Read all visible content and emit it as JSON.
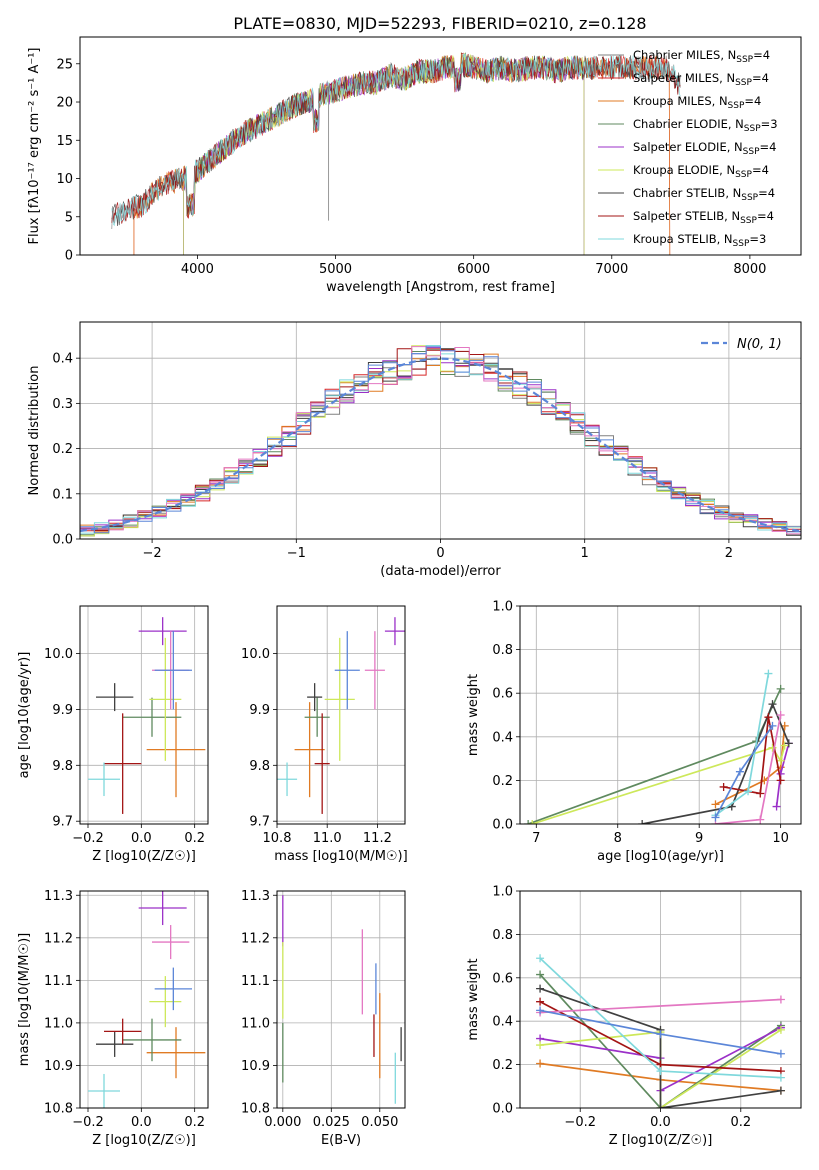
{
  "figure": {
    "title": "PLATE=0830, MJD=52293, FIBERID=0210, z=0.128"
  },
  "chart_data": [
    {
      "id": "spectrum",
      "type": "line",
      "xlabel": "wavelength [Angstrom, rest frame]",
      "ylabel": "Flux [fλ10⁻¹⁷ erg cm⁻² s⁻¹ A⁻¹]",
      "xlim": [
        3150,
        8370
      ],
      "ylim": [
        0,
        28.5
      ],
      "xticks": [
        4000,
        5000,
        6000,
        7000,
        8000
      ],
      "yticks": [
        0,
        5,
        10,
        15,
        20,
        25
      ],
      "grid": false,
      "legend_position": "right",
      "spectrum_outline": {
        "x": [
          3380,
          3500,
          3600,
          3700,
          3800,
          3900,
          4000,
          4100,
          4200,
          4300,
          4400,
          4500,
          4600,
          4700,
          4800,
          4900,
          5000,
          5100,
          5200,
          5300,
          5400,
          5500,
          5600,
          5700,
          5800,
          5900,
          6000,
          6100,
          6200,
          6300,
          6400,
          6500,
          6600,
          6700,
          6800,
          6900,
          7000,
          7100,
          7200,
          7300,
          7400,
          7500
        ],
        "y": [
          5,
          6,
          6.5,
          8.5,
          9.5,
          10,
          11,
          12.5,
          14,
          15.5,
          16.5,
          17.5,
          18.5,
          19.5,
          20,
          21,
          21.5,
          22,
          22.5,
          22.5,
          23.5,
          23,
          24,
          24,
          24.5,
          25,
          24.5,
          24,
          24.5,
          24,
          24.5,
          24.5,
          24,
          24.5,
          24.5,
          24.5,
          24.5,
          24.5,
          24.5,
          24.5,
          24.5,
          22
        ]
      },
      "series": [
        {
          "name": "Chabrier MILES, N_SSP=4",
          "color": "#808080",
          "x_range": [
            3380,
            7500
          ]
        },
        {
          "name": "Salpeter MILES, N_SSP=4",
          "color": "#d62728",
          "x_range": [
            3540,
            7420
          ]
        },
        {
          "name": "Kroupa MILES, N_SSP=4",
          "color": "#e07b24",
          "x_range": [
            3540,
            7420
          ]
        },
        {
          "name": "Chabrier ELODIE, N_SSP=3",
          "color": "#5f8a5f",
          "x_range": [
            3900,
            6800
          ]
        },
        {
          "name": "Salpeter ELODIE, N_SSP=4",
          "color": "#9b30c8",
          "x_range": [
            3900,
            6800
          ]
        },
        {
          "name": "Kroupa ELODIE, N_SSP=4",
          "color": "#cde85a",
          "x_range": [
            3900,
            6800
          ]
        },
        {
          "name": "Chabrier STELIB, N_SSP=4",
          "color": "#404040",
          "x_range": [
            3380,
            7500
          ]
        },
        {
          "name": "Salpeter STELIB, N_SSP=4",
          "color": "#a31515",
          "x_range": [
            3380,
            7500
          ]
        },
        {
          "name": "Kroupa STELIB, N_SSP=3",
          "color": "#7fd8dc",
          "x_range": [
            3380,
            7500
          ]
        }
      ]
    },
    {
      "id": "residuals",
      "type": "histogram",
      "xlabel": "(data-model)/error",
      "ylabel": "Normed distribution",
      "xlim": [
        -2.5,
        2.5
      ],
      "ylim": [
        0,
        0.48
      ],
      "xticks": [
        -2,
        -1,
        0,
        1,
        2
      ],
      "yticks": [
        0.0,
        0.1,
        0.2,
        0.3,
        0.4
      ],
      "grid": true,
      "legend": "N(0, 1)",
      "legend_position": "top-right",
      "bin_width": 0.1
    },
    {
      "id": "age_vs_Z",
      "type": "scatter",
      "xlabel": "Z [log10(Z/Z☉)]",
      "ylabel": "age  [log10(age/yr)]",
      "xlim": [
        -0.23,
        0.25
      ],
      "ylim": [
        9.695,
        10.085
      ],
      "xticks": [
        -0.2,
        0.0,
        0.2
      ],
      "yticks": [
        9.7,
        9.8,
        9.9,
        10.0
      ],
      "grid": true,
      "points": [
        {
          "x": 0.13,
          "y": 9.828,
          "xerr": 0.11,
          "yerr": 0.085,
          "color": "#e07b24"
        },
        {
          "x": 0.04,
          "y": 9.886,
          "xerr": 0.11,
          "yerr": 0.035,
          "color": "#5f8a5f"
        },
        {
          "x": 0.08,
          "y": 10.04,
          "xerr": 0.09,
          "yerr": 0.025,
          "color": "#9b30c8"
        },
        {
          "x": 0.09,
          "y": 9.918,
          "xerr": 0.06,
          "yerr": 0.11,
          "color": "#cde85a"
        },
        {
          "x": -0.1,
          "y": 9.922,
          "xerr": 0.07,
          "yerr": 0.025,
          "color": "#404040"
        },
        {
          "x": -0.07,
          "y": 9.803,
          "xerr": 0.07,
          "yerr": 0.09,
          "color": "#a31515"
        },
        {
          "x": -0.14,
          "y": 9.775,
          "xerr": 0.06,
          "yerr": 0.03,
          "color": "#7fd8dc"
        },
        {
          "x": 0.11,
          "y": 9.97,
          "xerr": 0.07,
          "yerr": 0.07,
          "color": "#e377c2"
        },
        {
          "x": 0.12,
          "y": 9.97,
          "xerr": 0.07,
          "yerr": 0.07,
          "color": "#5b86d8"
        }
      ]
    },
    {
      "id": "age_vs_mass",
      "type": "scatter",
      "xlabel": "mass [log10(M/M☉)]",
      "ylabel": "",
      "xlim": [
        10.8,
        11.31
      ],
      "ylim": [
        9.695,
        10.085
      ],
      "xticks": [
        10.8,
        11.0,
        11.2
      ],
      "yticks": [
        9.7,
        9.8,
        9.9,
        10.0
      ],
      "grid": true,
      "points": [
        {
          "x": 10.93,
          "y": 9.828,
          "xerr": 0.06,
          "yerr": 0.085,
          "color": "#e07b24"
        },
        {
          "x": 10.96,
          "y": 9.886,
          "xerr": 0.05,
          "yerr": 0.035,
          "color": "#5f8a5f"
        },
        {
          "x": 11.27,
          "y": 10.04,
          "xerr": 0.04,
          "yerr": 0.025,
          "color": "#9b30c8"
        },
        {
          "x": 11.05,
          "y": 9.918,
          "xerr": 0.06,
          "yerr": 0.11,
          "color": "#cde85a"
        },
        {
          "x": 10.95,
          "y": 9.922,
          "xerr": 0.03,
          "yerr": 0.025,
          "color": "#404040"
        },
        {
          "x": 10.98,
          "y": 9.803,
          "xerr": 0.03,
          "yerr": 0.09,
          "color": "#a31515"
        },
        {
          "x": 10.84,
          "y": 9.775,
          "xerr": 0.04,
          "yerr": 0.03,
          "color": "#7fd8dc"
        },
        {
          "x": 11.19,
          "y": 9.97,
          "xerr": 0.04,
          "yerr": 0.07,
          "color": "#e377c2"
        },
        {
          "x": 11.08,
          "y": 9.97,
          "xerr": 0.05,
          "yerr": 0.07,
          "color": "#5b86d8"
        }
      ]
    },
    {
      "id": "mass_weight_vs_age",
      "type": "line",
      "xlabel": "age  [log10(age/yr)]",
      "ylabel": "mass weight",
      "xlim": [
        6.8,
        10.25
      ],
      "ylim": [
        0,
        1.0
      ],
      "xticks": [
        7,
        8,
        9,
        10
      ],
      "yticks": [
        0.0,
        0.2,
        0.4,
        0.6,
        0.8,
        1.0
      ],
      "grid": true,
      "series": [
        {
          "color": "#e07b24",
          "points": [
            [
              9.2,
              0.09
            ],
            [
              9.8,
              0.2
            ],
            [
              10.0,
              0.26
            ],
            [
              10.05,
              0.45
            ]
          ]
        },
        {
          "color": "#5f8a5f",
          "points": [
            [
              6.9,
              0.0
            ],
            [
              9.7,
              0.38
            ],
            [
              10.0,
              0.62
            ]
          ]
        },
        {
          "color": "#9b30c8",
          "points": [
            [
              9.95,
              0.08
            ],
            [
              10.0,
              0.23
            ],
            [
              10.1,
              0.37
            ]
          ]
        },
        {
          "color": "#cde85a",
          "points": [
            [
              6.95,
              0.0
            ],
            [
              9.9,
              0.35
            ],
            [
              10.0,
              0.29
            ],
            [
              10.05,
              0.36
            ]
          ]
        },
        {
          "color": "#404040",
          "points": [
            [
              8.3,
              0.0
            ],
            [
              9.4,
              0.08
            ],
            [
              9.9,
              0.55
            ],
            [
              10.1,
              0.37
            ]
          ]
        },
        {
          "color": "#a31515",
          "points": [
            [
              9.3,
              0.17
            ],
            [
              9.75,
              0.14
            ],
            [
              9.85,
              0.49
            ],
            [
              10.0,
              0.2
            ]
          ]
        },
        {
          "color": "#7fd8dc",
          "points": [
            [
              9.2,
              0.04
            ],
            [
              9.6,
              0.15
            ],
            [
              9.85,
              0.69
            ]
          ]
        },
        {
          "color": "#e377c2",
          "points": [
            [
              9.2,
              0.0
            ],
            [
              9.75,
              0.02
            ],
            [
              10.0,
              0.5
            ]
          ]
        },
        {
          "color": "#5b86d8",
          "points": [
            [
              9.2,
              0.03
            ],
            [
              9.5,
              0.24
            ],
            [
              9.9,
              0.45
            ]
          ]
        }
      ]
    },
    {
      "id": "mass_vs_Z",
      "type": "scatter",
      "xlabel": "Z [log10(Z/Z☉)]",
      "ylabel": "mass [log10(M/M☉)]",
      "xlim": [
        -0.23,
        0.25
      ],
      "ylim": [
        10.8,
        11.31
      ],
      "xticks": [
        -0.2,
        0.0,
        0.2
      ],
      "yticks": [
        10.8,
        10.9,
        11.0,
        11.1,
        11.2,
        11.3
      ],
      "grid": true,
      "points": [
        {
          "x": 0.13,
          "y": 10.93,
          "xerr": 0.11,
          "yerr": 0.06,
          "color": "#e07b24"
        },
        {
          "x": 0.04,
          "y": 10.96,
          "xerr": 0.11,
          "yerr": 0.05,
          "color": "#5f8a5f"
        },
        {
          "x": 0.08,
          "y": 11.27,
          "xerr": 0.09,
          "yerr": 0.04,
          "color": "#9b30c8"
        },
        {
          "x": 0.09,
          "y": 11.05,
          "xerr": 0.06,
          "yerr": 0.06,
          "color": "#cde85a"
        },
        {
          "x": -0.1,
          "y": 10.95,
          "xerr": 0.07,
          "yerr": 0.03,
          "color": "#404040"
        },
        {
          "x": -0.07,
          "y": 10.98,
          "xerr": 0.07,
          "yerr": 0.03,
          "color": "#a31515"
        },
        {
          "x": -0.14,
          "y": 10.84,
          "xerr": 0.06,
          "yerr": 0.04,
          "color": "#7fd8dc"
        },
        {
          "x": 0.11,
          "y": 11.19,
          "xerr": 0.07,
          "yerr": 0.04,
          "color": "#e377c2"
        },
        {
          "x": 0.12,
          "y": 11.08,
          "xerr": 0.07,
          "yerr": 0.05,
          "color": "#5b86d8"
        }
      ]
    },
    {
      "id": "mass_vs_EBV",
      "type": "scatter",
      "xlabel": "E(B-V)",
      "ylabel": "",
      "xlim": [
        -0.003,
        0.063
      ],
      "ylim": [
        10.8,
        11.31
      ],
      "xticks": [
        0.0,
        0.025,
        0.05
      ],
      "yticks": [
        10.8,
        10.9,
        11.0,
        11.1,
        11.2,
        11.3
      ],
      "grid": true,
      "points": [
        {
          "x": 0.05,
          "y": 10.97,
          "xerr": 0,
          "yerr": 0.1,
          "color": "#e07b24"
        },
        {
          "x": 0.0,
          "y": 10.93,
          "xerr": 0,
          "yerr": 0.07,
          "color": "#5f8a5f"
        },
        {
          "x": 0.0,
          "y": 11.24,
          "xerr": 0,
          "yerr": 0.06,
          "color": "#9b30c8"
        },
        {
          "x": 0.0,
          "y": 11.1,
          "xerr": 0,
          "yerr": 0.09,
          "color": "#cde85a"
        },
        {
          "x": 0.061,
          "y": 10.95,
          "xerr": 0,
          "yerr": 0.04,
          "color": "#404040"
        },
        {
          "x": 0.047,
          "y": 10.97,
          "xerr": 0,
          "yerr": 0.05,
          "color": "#a31515"
        },
        {
          "x": 0.058,
          "y": 10.87,
          "xerr": 0,
          "yerr": 0.06,
          "color": "#7fd8dc"
        },
        {
          "x": 0.041,
          "y": 11.12,
          "xerr": 0,
          "yerr": 0.1,
          "color": "#e377c2"
        },
        {
          "x": 0.048,
          "y": 11.08,
          "xerr": 0,
          "yerr": 0.06,
          "color": "#5b86d8"
        }
      ]
    },
    {
      "id": "mass_weight_vs_Z",
      "type": "line",
      "xlabel": "Z [log10(Z/Z☉)]",
      "ylabel": "mass weight",
      "xlim": [
        -0.35,
        0.35
      ],
      "ylim": [
        0,
        1.0
      ],
      "xticks": [
        -0.2,
        0.0,
        0.2
      ],
      "yticks": [
        0.0,
        0.2,
        0.4,
        0.6,
        0.8,
        1.0
      ],
      "grid": true,
      "series": [
        {
          "color": "#e07b24",
          "points": [
            [
              -0.3,
              0.205
            ],
            [
              0.0,
              0.13
            ],
            [
              0.3,
              0.08
            ]
          ]
        },
        {
          "color": "#5f8a5f",
          "points": [
            [
              -0.3,
              0.615
            ],
            [
              0.0,
              0.0
            ],
            [
              0.3,
              0.38
            ]
          ]
        },
        {
          "color": "#9b30c8",
          "points": [
            [
              -0.3,
              0.32
            ],
            [
              0.0,
              0.23
            ],
            [
              0.0,
              0.08
            ],
            [
              0.3,
              0.37
            ]
          ]
        },
        {
          "color": "#cde85a",
          "points": [
            [
              -0.3,
              0.29
            ],
            [
              0.0,
              0.35
            ],
            [
              0.0,
              0.0
            ],
            [
              0.3,
              0.36
            ]
          ]
        },
        {
          "color": "#404040",
          "points": [
            [
              -0.3,
              0.55
            ],
            [
              0.0,
              0.36
            ],
            [
              0.0,
              0.0
            ],
            [
              0.3,
              0.08
            ]
          ]
        },
        {
          "color": "#a31515",
          "points": [
            [
              -0.3,
              0.49
            ],
            [
              0.0,
              0.2
            ],
            [
              0.3,
              0.17
            ]
          ]
        },
        {
          "color": "#7fd8dc",
          "points": [
            [
              -0.3,
              0.69
            ],
            [
              0.0,
              0.17
            ],
            [
              0.3,
              0.14
            ]
          ]
        },
        {
          "color": "#e377c2",
          "points": [
            [
              -0.3,
              0.44
            ],
            [
              0.3,
              0.5
            ]
          ]
        },
        {
          "color": "#5b86d8",
          "points": [
            [
              -0.3,
              0.45
            ],
            [
              0.0,
              0.34
            ],
            [
              0.3,
              0.25
            ]
          ]
        }
      ]
    }
  ]
}
